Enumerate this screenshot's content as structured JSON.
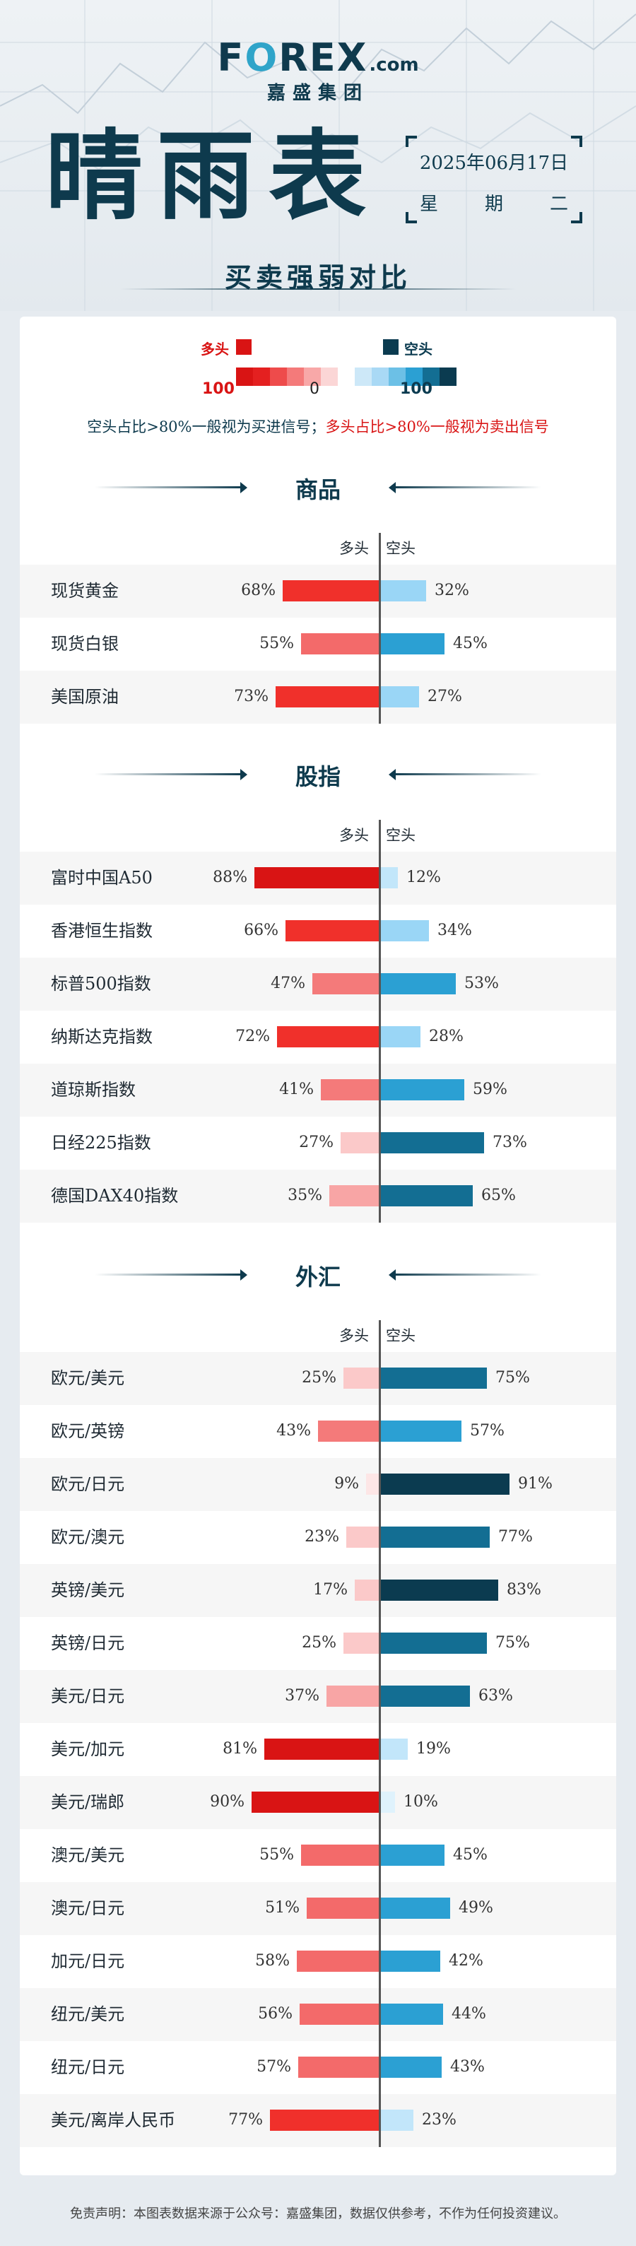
{
  "brand": {
    "logo": "FOREX",
    "logo_suffix": ".com",
    "sub": "嘉盛集团"
  },
  "title": "晴雨表",
  "date": "2025年06月17日",
  "weekday": [
    "星",
    "期",
    "二"
  ],
  "subtitle": "买卖强弱对比",
  "legend": {
    "bull": "多头",
    "bear": "空头",
    "left": "100",
    "zero": "0",
    "right": "100",
    "colors": [
      "#d91414",
      "#e42020",
      "#ee4b4b",
      "#f47a7a",
      "#f8a8a8",
      "#fbd6d6",
      "#ffffff",
      "#cde8f8",
      "#a9d9f5",
      "#6cc0e6",
      "#2ba0d3",
      "#136e93",
      "#0b3b50"
    ]
  },
  "note": {
    "bear_signal": "空头占比>80%一般视为买进信号；",
    "bull_signal": "多头占比>80%一般视为卖出信号"
  },
  "column_headers": {
    "bull": "多头",
    "bear": "空头"
  },
  "sections": [
    {
      "title": "商品",
      "rows": [
        {
          "name": "现货黄金",
          "long": 68,
          "short": 32
        },
        {
          "name": "现货白银",
          "long": 55,
          "short": 45
        },
        {
          "name": "美国原油",
          "long": 73,
          "short": 27
        }
      ]
    },
    {
      "title": "股指",
      "rows": [
        {
          "name": "富时中国A50",
          "long": 88,
          "short": 12
        },
        {
          "name": "香港恒生指数",
          "long": 66,
          "short": 34
        },
        {
          "name": "标普500指数",
          "long": 47,
          "short": 53
        },
        {
          "name": "纳斯达克指数",
          "long": 72,
          "short": 28
        },
        {
          "name": "道琼斯指数",
          "long": 41,
          "short": 59
        },
        {
          "name": "日经225指数",
          "long": 27,
          "short": 73
        },
        {
          "name": "德国DAX40指数",
          "long": 35,
          "short": 65
        }
      ]
    },
    {
      "title": "外汇",
      "rows": [
        {
          "name": "欧元/美元",
          "long": 25,
          "short": 75
        },
        {
          "name": "欧元/英镑",
          "long": 43,
          "short": 57
        },
        {
          "name": "欧元/日元",
          "long": 9,
          "short": 91
        },
        {
          "name": "欧元/澳元",
          "long": 23,
          "short": 77
        },
        {
          "name": "英镑/美元",
          "long": 17,
          "short": 83
        },
        {
          "name": "英镑/日元",
          "long": 25,
          "short": 75
        },
        {
          "name": "美元/日元",
          "long": 37,
          "short": 63
        },
        {
          "name": "美元/加元",
          "long": 81,
          "short": 19
        },
        {
          "name": "美元/瑞郎",
          "long": 90,
          "short": 10
        },
        {
          "name": "澳元/美元",
          "long": 55,
          "short": 45
        },
        {
          "name": "澳元/日元",
          "long": 51,
          "short": 49
        },
        {
          "name": "加元/日元",
          "long": 58,
          "short": 42
        },
        {
          "name": "纽元/美元",
          "long": 56,
          "short": 44
        },
        {
          "name": "纽元/日元",
          "long": 57,
          "short": 43
        },
        {
          "name": "美元/离岸人民币",
          "long": 77,
          "short": 23
        }
      ]
    }
  ],
  "footer": "免责声明：本图表数据来源于公众号：嘉盛集团，数据仅供参考，不作为任何投资建议。"
}
